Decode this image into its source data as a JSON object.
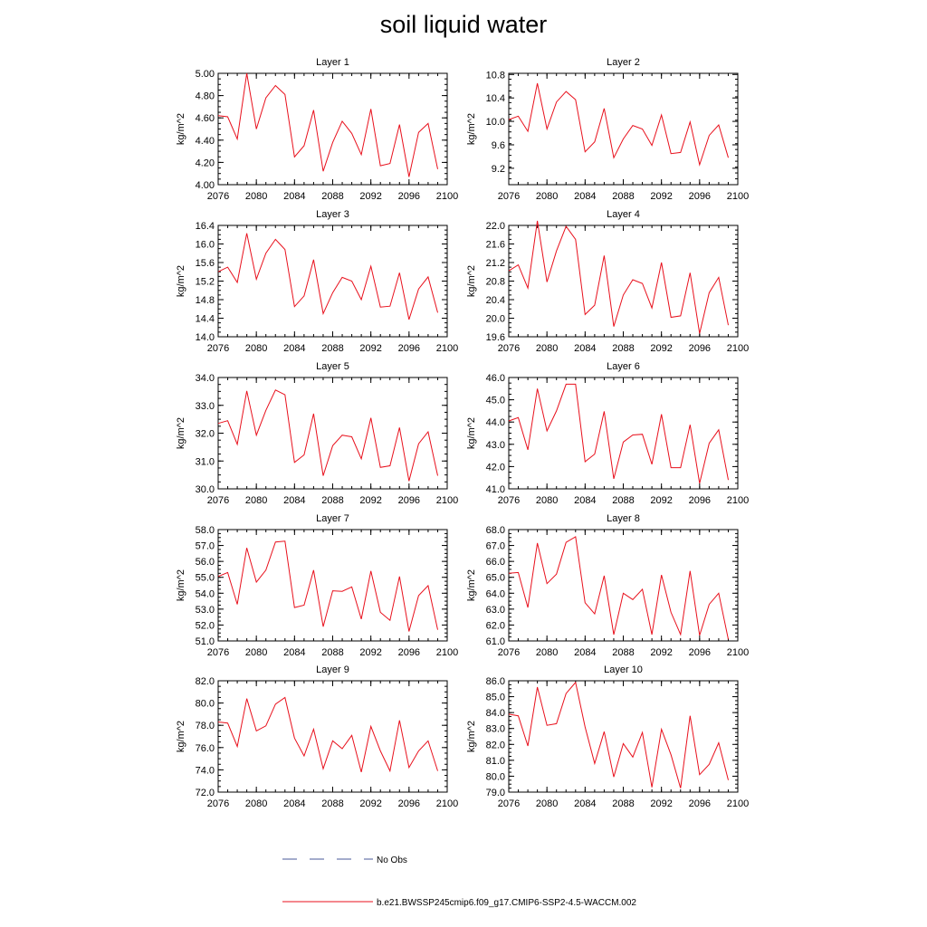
{
  "title": "soil liquid water",
  "chart_data": [
    {
      "type": "line",
      "title": "Layer 1",
      "ylabel": "kg/m^2",
      "xlim": [
        2076,
        2100
      ],
      "ylim": [
        4.0,
        5.0
      ],
      "xticks": [
        "2076",
        "2080",
        "2084",
        "2088",
        "2092",
        "2096",
        "2100"
      ],
      "yticks": [
        "4.00",
        "4.20",
        "4.40",
        "4.60",
        "4.80",
        "5.00"
      ],
      "x": [
        2076,
        2077,
        2078,
        2079,
        2080,
        2081,
        2082,
        2083,
        2084,
        2085,
        2086,
        2087,
        2088,
        2089,
        2090,
        2091,
        2092,
        2093,
        2094,
        2095,
        2096,
        2097,
        2098,
        2099
      ],
      "series": [
        {
          "color": "#e8101c",
          "values": [
            4.62,
            4.61,
            4.41,
            5.0,
            4.5,
            4.78,
            4.89,
            4.81,
            4.25,
            4.35,
            4.67,
            4.12,
            4.38,
            4.57,
            4.46,
            4.27,
            4.68,
            4.17,
            4.19,
            4.54,
            4.07,
            4.47,
            4.55,
            4.14
          ]
        }
      ]
    },
    {
      "type": "line",
      "title": "Layer 2",
      "ylabel": "kg/m^2",
      "xlim": [
        2076,
        2100
      ],
      "ylim": [
        8.92,
        10.82
      ],
      "xticks": [
        "2076",
        "2080",
        "2084",
        "2088",
        "2092",
        "2096",
        "2100"
      ],
      "yticks": [
        "9.2",
        "9.6",
        "10.0",
        "10.4",
        "10.8"
      ],
      "x": [
        2076,
        2077,
        2078,
        2079,
        2080,
        2081,
        2082,
        2083,
        2084,
        2085,
        2086,
        2087,
        2088,
        2089,
        2090,
        2091,
        2092,
        2093,
        2094,
        2095,
        2096,
        2097,
        2098,
        2099
      ],
      "series": [
        {
          "color": "#e8101c",
          "values": [
            10.03,
            10.09,
            9.83,
            10.65,
            9.87,
            10.33,
            10.51,
            10.37,
            9.48,
            9.65,
            10.22,
            9.38,
            9.7,
            9.93,
            9.87,
            9.59,
            10.11,
            9.45,
            9.47,
            9.99,
            9.26,
            9.76,
            9.94,
            9.38
          ]
        }
      ]
    },
    {
      "type": "line",
      "title": "Layer 3",
      "ylabel": "kg/m^2",
      "xlim": [
        2076,
        2100
      ],
      "ylim": [
        14.0,
        16.4
      ],
      "xticks": [
        "2076",
        "2080",
        "2084",
        "2088",
        "2092",
        "2096",
        "2100"
      ],
      "yticks": [
        "14.0",
        "14.4",
        "14.8",
        "15.2",
        "15.6",
        "16.0",
        "16.4"
      ],
      "x": [
        2076,
        2077,
        2078,
        2079,
        2080,
        2081,
        2082,
        2083,
        2084,
        2085,
        2086,
        2087,
        2088,
        2089,
        2090,
        2091,
        2092,
        2093,
        2094,
        2095,
        2096,
        2097,
        2098,
        2099
      ],
      "series": [
        {
          "color": "#e8101c",
          "values": [
            15.4,
            15.5,
            15.17,
            16.23,
            15.24,
            15.8,
            16.1,
            15.88,
            14.65,
            14.88,
            15.66,
            14.5,
            14.95,
            15.28,
            15.2,
            14.8,
            15.52,
            14.64,
            14.66,
            15.38,
            14.37,
            15.03,
            15.29,
            14.52
          ]
        }
      ]
    },
    {
      "type": "line",
      "title": "Layer 4",
      "ylabel": "kg/m^2",
      "xlim": [
        2076,
        2100
      ],
      "ylim": [
        19.6,
        22.0
      ],
      "xticks": [
        "2076",
        "2080",
        "2084",
        "2088",
        "2092",
        "2096",
        "2100"
      ],
      "yticks": [
        "19.6",
        "20.0",
        "20.4",
        "20.8",
        "21.2",
        "21.6",
        "22.0"
      ],
      "x": [
        2076,
        2077,
        2078,
        2079,
        2080,
        2081,
        2082,
        2083,
        2084,
        2085,
        2086,
        2087,
        2088,
        2089,
        2090,
        2091,
        2092,
        2093,
        2094,
        2095,
        2096,
        2097,
        2098,
        2099
      ],
      "series": [
        {
          "color": "#e8101c",
          "values": [
            21.02,
            21.15,
            20.65,
            22.1,
            20.78,
            21.45,
            21.98,
            21.7,
            20.08,
            20.28,
            21.35,
            19.82,
            20.5,
            20.83,
            20.75,
            20.22,
            21.2,
            20.02,
            20.05,
            20.98,
            19.67,
            20.55,
            20.88,
            19.85
          ]
        }
      ]
    },
    {
      "type": "line",
      "title": "Layer 5",
      "ylabel": "kg/m^2",
      "xlim": [
        2076,
        2100
      ],
      "ylim": [
        30.0,
        34.0
      ],
      "xticks": [
        "2076",
        "2080",
        "2084",
        "2088",
        "2092",
        "2096",
        "2100"
      ],
      "yticks": [
        "30.0",
        "31.0",
        "32.0",
        "33.0",
        "34.0"
      ],
      "x": [
        2076,
        2077,
        2078,
        2079,
        2080,
        2081,
        2082,
        2083,
        2084,
        2085,
        2086,
        2087,
        2088,
        2089,
        2090,
        2091,
        2092,
        2093,
        2094,
        2095,
        2096,
        2097,
        2098,
        2099
      ],
      "series": [
        {
          "color": "#e8101c",
          "values": [
            32.35,
            32.45,
            31.6,
            33.52,
            31.93,
            32.82,
            33.55,
            33.38,
            30.95,
            31.22,
            32.7,
            30.47,
            31.55,
            31.93,
            31.87,
            31.08,
            32.55,
            30.77,
            30.83,
            32.2,
            30.28,
            31.62,
            32.05,
            30.47
          ]
        }
      ]
    },
    {
      "type": "line",
      "title": "Layer 6",
      "ylabel": "kg/m^2",
      "xlim": [
        2076,
        2100
      ],
      "ylim": [
        41.0,
        46.0
      ],
      "xticks": [
        "2076",
        "2080",
        "2084",
        "2088",
        "2092",
        "2096",
        "2100"
      ],
      "yticks": [
        "41.0",
        "42.0",
        "43.0",
        "44.0",
        "45.0",
        "46.0"
      ],
      "x": [
        2076,
        2077,
        2078,
        2079,
        2080,
        2081,
        2082,
        2083,
        2084,
        2085,
        2086,
        2087,
        2088,
        2089,
        2090,
        2091,
        2092,
        2093,
        2094,
        2095,
        2096,
        2097,
        2098,
        2099
      ],
      "series": [
        {
          "color": "#e8101c",
          "values": [
            44.05,
            44.2,
            42.75,
            45.5,
            43.6,
            44.5,
            45.7,
            45.7,
            42.22,
            42.56,
            44.48,
            41.45,
            43.1,
            43.42,
            43.45,
            42.1,
            44.35,
            41.95,
            41.95,
            43.88,
            41.25,
            43.05,
            43.65,
            41.4
          ]
        }
      ]
    },
    {
      "type": "line",
      "title": "Layer 7",
      "ylabel": "kg/m^2",
      "xlim": [
        2076,
        2100
      ],
      "ylim": [
        51.0,
        58.0
      ],
      "xticks": [
        "2076",
        "2080",
        "2084",
        "2088",
        "2092",
        "2096",
        "2100"
      ],
      "yticks": [
        "51.0",
        "52.0",
        "53.0",
        "54.0",
        "55.0",
        "56.0",
        "57.0",
        "58.0"
      ],
      "x": [
        2076,
        2077,
        2078,
        2079,
        2080,
        2081,
        2082,
        2083,
        2084,
        2085,
        2086,
        2087,
        2088,
        2089,
        2090,
        2091,
        2092,
        2093,
        2094,
        2095,
        2096,
        2097,
        2098,
        2099
      ],
      "series": [
        {
          "color": "#e8101c",
          "values": [
            55.05,
            55.3,
            53.3,
            56.85,
            54.7,
            55.45,
            57.22,
            57.27,
            53.1,
            53.25,
            55.45,
            51.9,
            54.15,
            54.12,
            54.4,
            52.37,
            55.4,
            52.8,
            52.3,
            55.05,
            51.6,
            53.85,
            54.48,
            51.7
          ]
        }
      ]
    },
    {
      "type": "line",
      "title": "Layer 8",
      "ylabel": "kg/m^2",
      "xlim": [
        2076,
        2100
      ],
      "ylim": [
        61.0,
        68.0
      ],
      "xticks": [
        "2076",
        "2080",
        "2084",
        "2088",
        "2092",
        "2096",
        "2100"
      ],
      "yticks": [
        "61.0",
        "62.0",
        "63.0",
        "64.0",
        "65.0",
        "66.0",
        "67.0",
        "68.0"
      ],
      "x": [
        2076,
        2077,
        2078,
        2079,
        2080,
        2081,
        2082,
        2083,
        2084,
        2085,
        2086,
        2087,
        2088,
        2089,
        2090,
        2091,
        2092,
        2093,
        2094,
        2095,
        2096,
        2097,
        2098,
        2099
      ],
      "series": [
        {
          "color": "#e8101c",
          "values": [
            65.25,
            65.3,
            63.1,
            67.15,
            64.6,
            65.2,
            67.2,
            67.55,
            63.4,
            62.7,
            65.1,
            61.4,
            64.0,
            63.6,
            64.25,
            61.4,
            65.15,
            62.8,
            61.4,
            65.4,
            61.35,
            63.3,
            64.0,
            61.1
          ]
        }
      ]
    },
    {
      "type": "line",
      "title": "Layer 9",
      "ylabel": "kg/m^2",
      "xlim": [
        2076,
        2100
      ],
      "ylim": [
        72.0,
        82.0
      ],
      "xticks": [
        "2076",
        "2080",
        "2084",
        "2088",
        "2092",
        "2096",
        "2100"
      ],
      "yticks": [
        "72.0",
        "74.0",
        "76.0",
        "78.0",
        "80.0",
        "82.0"
      ],
      "x": [
        2076,
        2077,
        2078,
        2079,
        2080,
        2081,
        2082,
        2083,
        2084,
        2085,
        2086,
        2087,
        2088,
        2089,
        2090,
        2091,
        2092,
        2093,
        2094,
        2095,
        2096,
        2097,
        2098,
        2099
      ],
      "series": [
        {
          "color": "#e8101c",
          "values": [
            78.3,
            78.2,
            76.1,
            80.4,
            77.5,
            77.95,
            79.9,
            80.5,
            76.85,
            75.25,
            77.65,
            74.1,
            76.6,
            75.9,
            77.1,
            73.8,
            77.9,
            75.7,
            73.9,
            78.45,
            74.2,
            75.7,
            76.6,
            73.9
          ]
        }
      ]
    },
    {
      "type": "line",
      "title": "Layer 10",
      "ylabel": "kg/m^2",
      "xlim": [
        2076,
        2100
      ],
      "ylim": [
        79.0,
        86.0
      ],
      "xticks": [
        "2076",
        "2080",
        "2084",
        "2088",
        "2092",
        "2096",
        "2100"
      ],
      "yticks": [
        "79.0",
        "80.0",
        "81.0",
        "82.0",
        "83.0",
        "84.0",
        "85.0",
        "86.0"
      ],
      "x": [
        2076,
        2077,
        2078,
        2079,
        2080,
        2081,
        2082,
        2083,
        2084,
        2085,
        2086,
        2087,
        2088,
        2089,
        2090,
        2091,
        2092,
        2093,
        2094,
        2095,
        2096,
        2097,
        2098,
        2099
      ],
      "series": [
        {
          "color": "#e8101c",
          "values": [
            83.9,
            83.8,
            81.9,
            85.6,
            83.2,
            83.3,
            85.2,
            85.9,
            83.1,
            80.8,
            82.8,
            79.95,
            82.05,
            81.2,
            82.75,
            79.3,
            82.95,
            81.35,
            79.25,
            83.8,
            80.1,
            80.75,
            82.1,
            79.75
          ]
        }
      ]
    }
  ],
  "legend": [
    {
      "label": "No Obs",
      "color": "#4a5a9a",
      "style": "dashed"
    },
    {
      "label": "b.e21.BWSSP245cmip6.f09_g17.CMIP6-SSP2-4.5-WACCM.002",
      "color": "#e8101c",
      "style": "solid"
    }
  ]
}
